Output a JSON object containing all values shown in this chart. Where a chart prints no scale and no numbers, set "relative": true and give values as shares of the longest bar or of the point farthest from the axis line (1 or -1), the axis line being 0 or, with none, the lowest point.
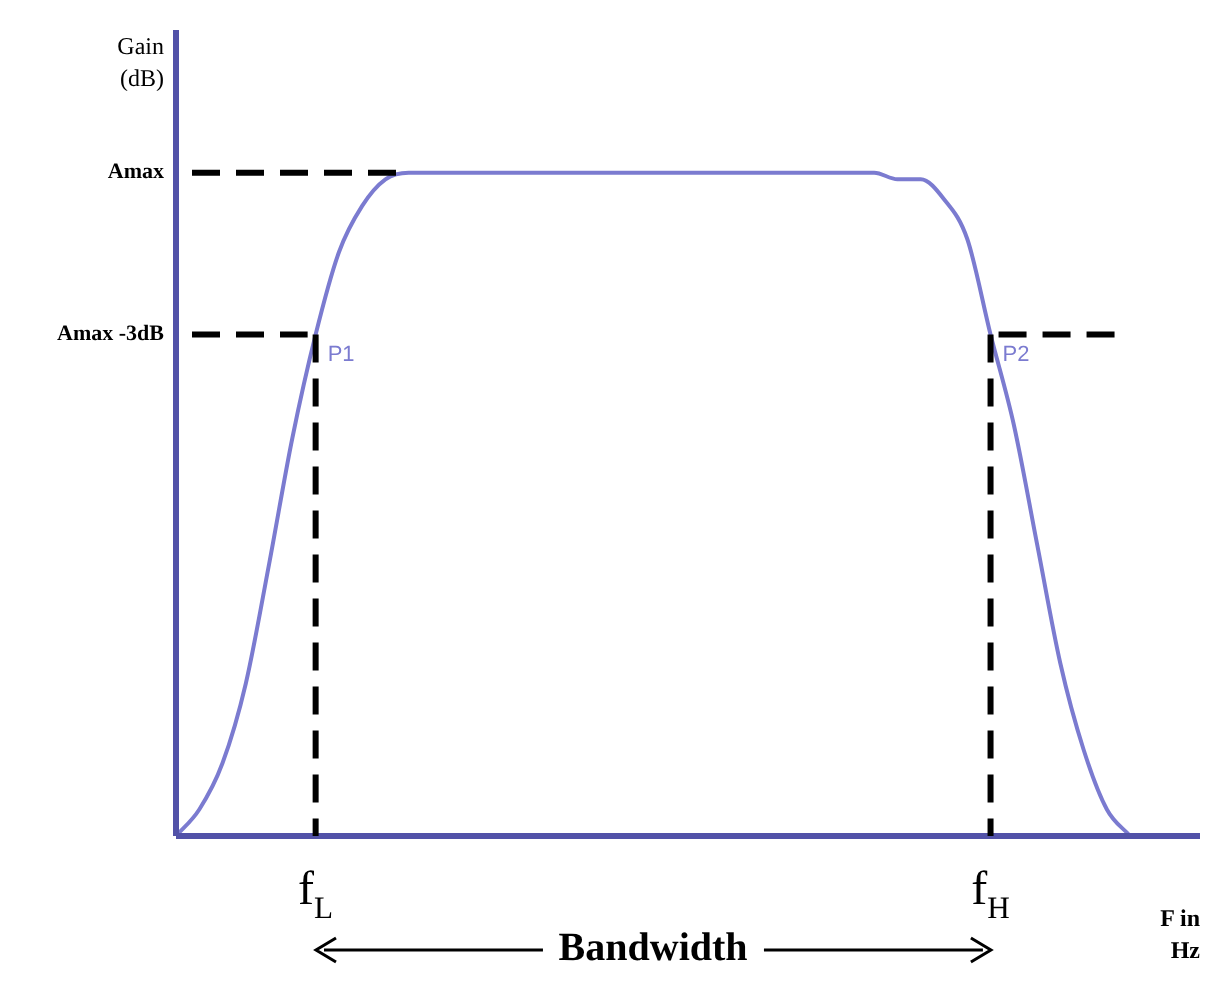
{
  "chart_data": {
    "type": "line",
    "relative": true,
    "xlabel": "F in Hz",
    "ylabel": "Gain (dB)",
    "categories": [
      null,
      null,
      null,
      null,
      null,
      null,
      "f$_{L}$",
      null,
      null,
      null,
      null,
      null,
      null,
      null,
      null,
      null,
      null,
      null,
      null,
      null,
      null,
      null,
      null,
      null,
      null,
      null,
      null,
      null,
      null,
      null,
      null,
      null,
      null,
      null,
      null,
      "f$_{H}$",
      null,
      null,
      null,
      null,
      null,
      null,
      null,
      null,
      null
    ],
    "series": [
      {
        "color": "#7b7bd0",
        "values": [
          0,
          0.04,
          0.11,
          0.23,
          0.41,
          0.6,
          0.756,
          0.88,
          0.95,
          0.99,
          1,
          1,
          1,
          1,
          1,
          1,
          1,
          1,
          1,
          1,
          1,
          1,
          1,
          1,
          1,
          1,
          1,
          1,
          1,
          1,
          1,
          0.99,
          0.99,
          0.96,
          0.9,
          0.756,
          0.62,
          0.44,
          0.26,
          0.13,
          0.04,
          0,
          null,
          null,
          null
        ]
      }
    ],
    "ref_lines": [
      {
        "axis": "y",
        "value": 1,
        "label": "Amax",
        "color": "#000000",
        "line_style": "dashed"
      },
      {
        "axis": "y",
        "value": 0.756,
        "label": "Amax -3dB",
        "color": "#000000",
        "line_style": "dashed"
      },
      {
        "axis": "x",
        "value": "f$_{L}$",
        "color": "#000000",
        "line_style": "dashed"
      },
      {
        "axis": "x",
        "value": "f$_{H}$",
        "color": "#000000",
        "line_style": "dashed"
      }
    ],
    "annotations": [
      {
        "text": "P1",
        "x": "f$_{L}$",
        "y": 0.756
      },
      {
        "text": "P2",
        "x": "f$_{H}$",
        "y": 0.756
      },
      "Bandwidth"
    ]
  }
}
